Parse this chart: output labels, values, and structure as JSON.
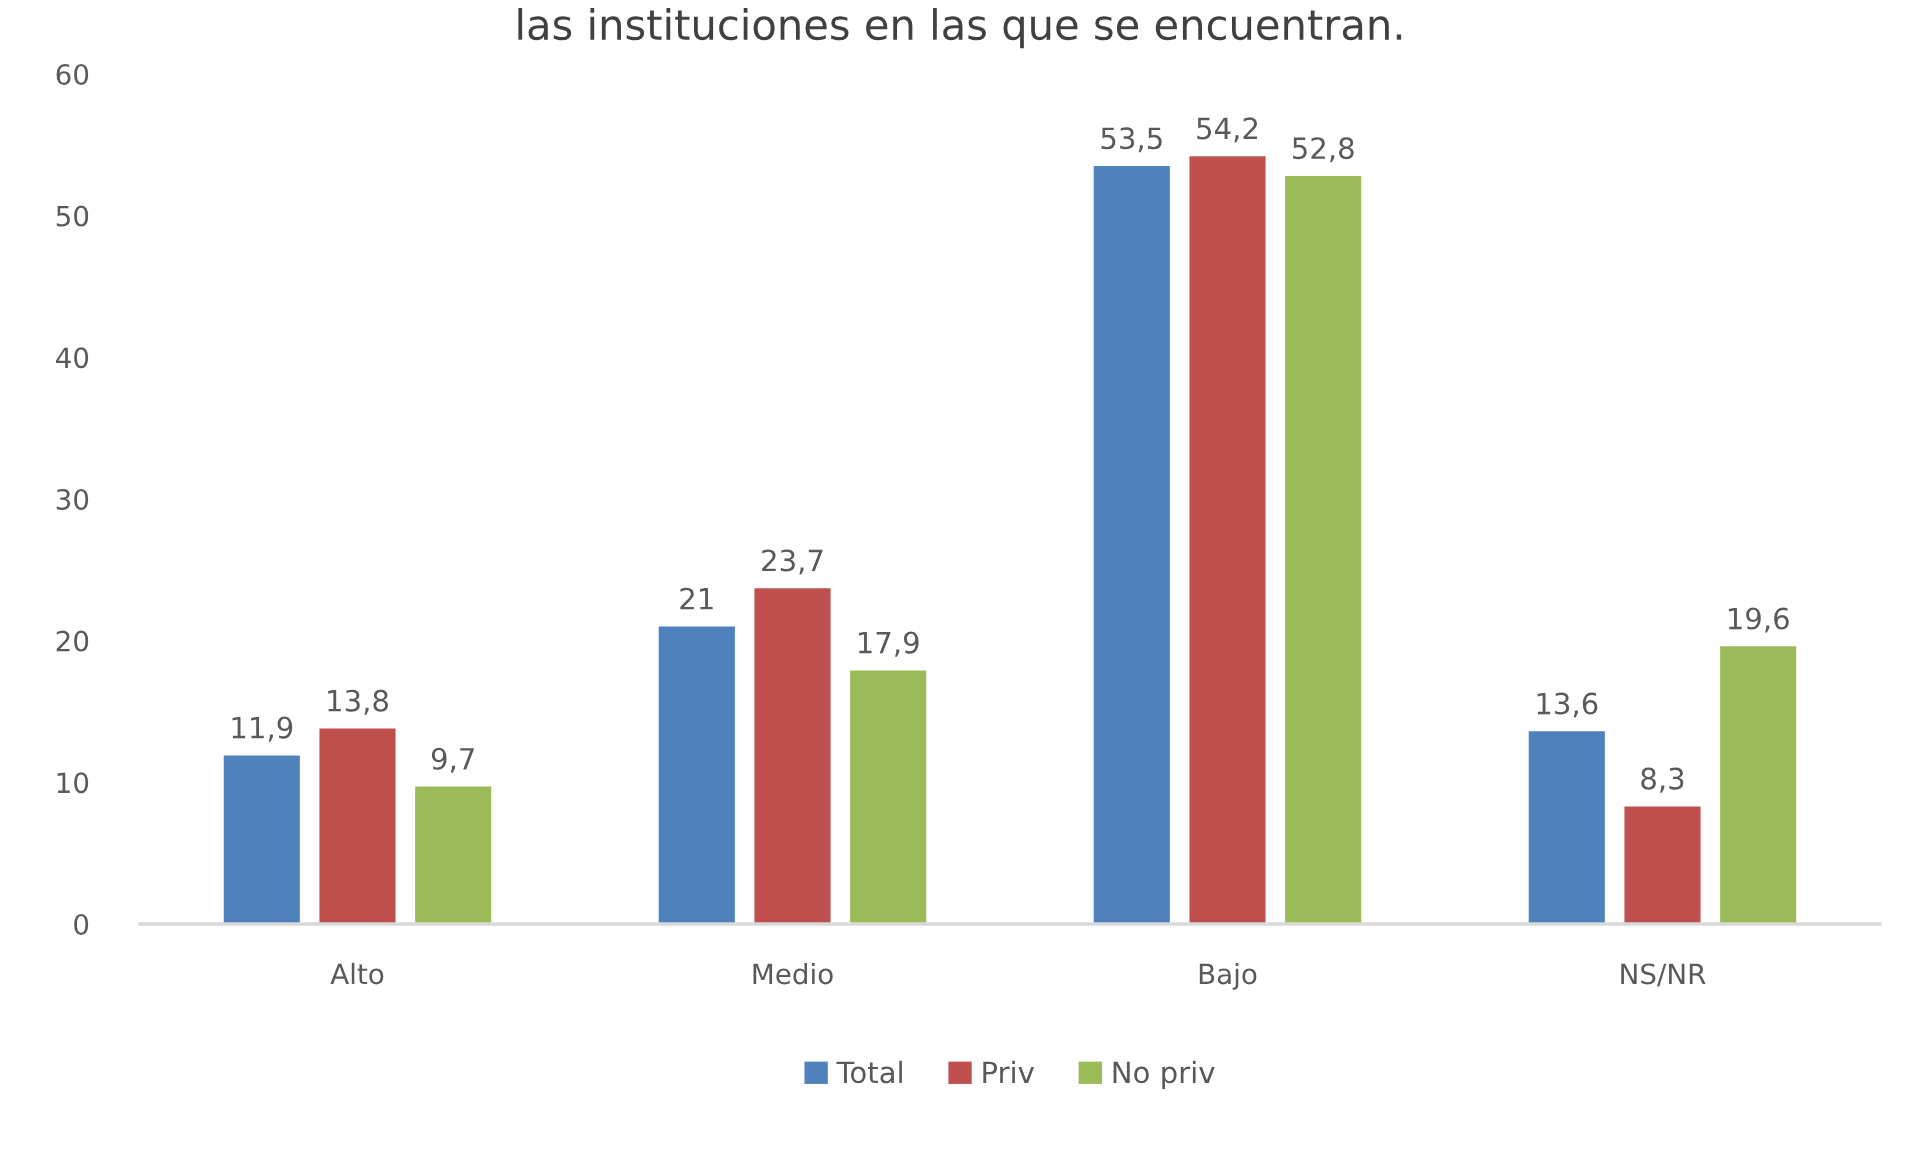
{
  "chart_data": {
    "type": "bar",
    "title": "las instituciones en las que se encuentran.",
    "categories": [
      "Alto",
      "Medio",
      "Bajo",
      "NS/NR"
    ],
    "series": [
      {
        "name": "Total",
        "color": "#4f81bd",
        "values": [
          11.9,
          21,
          53.5,
          13.6
        ],
        "value_labels": [
          "11,9",
          "21",
          "53,5",
          "13,6"
        ]
      },
      {
        "name": "Priv",
        "color": "#c0504d",
        "values": [
          13.8,
          23.7,
          54.2,
          8.3
        ],
        "value_labels": [
          "13,8",
          "23,7",
          "54,2",
          "8,3"
        ]
      },
      {
        "name": "No priv",
        "color": "#9bbb59",
        "values": [
          9.7,
          17.9,
          52.8,
          19.6
        ],
        "value_labels": [
          "9,7",
          "17,9",
          "52,8",
          "19,6"
        ]
      }
    ],
    "ylim": [
      0,
      60
    ],
    "yticks": [
      0,
      10,
      20,
      30,
      40,
      50,
      60
    ],
    "grid": false,
    "legend": "bottom"
  }
}
